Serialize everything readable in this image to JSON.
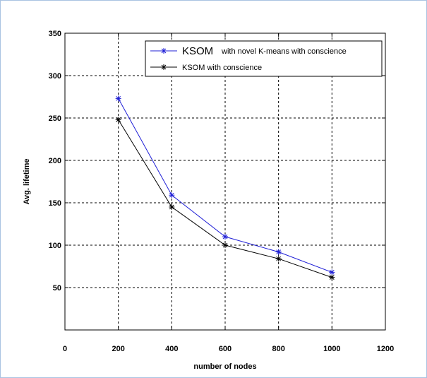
{
  "chart_data": {
    "type": "line",
    "xlabel": "number of nodes",
    "ylabel": "Avg. lifetime",
    "xlim": [
      0,
      1200
    ],
    "ylim": [
      0,
      350
    ],
    "xticks": [
      0,
      200,
      400,
      600,
      800,
      1000,
      1200
    ],
    "yticks": [
      50,
      100,
      150,
      200,
      250,
      300,
      350
    ],
    "grid": true,
    "legend_position": "top-right",
    "x": [
      200,
      400,
      600,
      800,
      1000
    ],
    "series": [
      {
        "name": "KSOM   with novel K-means with conscience",
        "name_prefix": "KSOM",
        "name_suffix": "with novel K-means with conscience",
        "color": "#1f1fd6",
        "marker": "star",
        "values": [
          273,
          159,
          110,
          92,
          68
        ]
      },
      {
        "name": "KSOM with conscience",
        "color": "#000000",
        "marker": "star",
        "values": [
          248,
          145,
          100,
          84,
          62
        ]
      }
    ]
  }
}
